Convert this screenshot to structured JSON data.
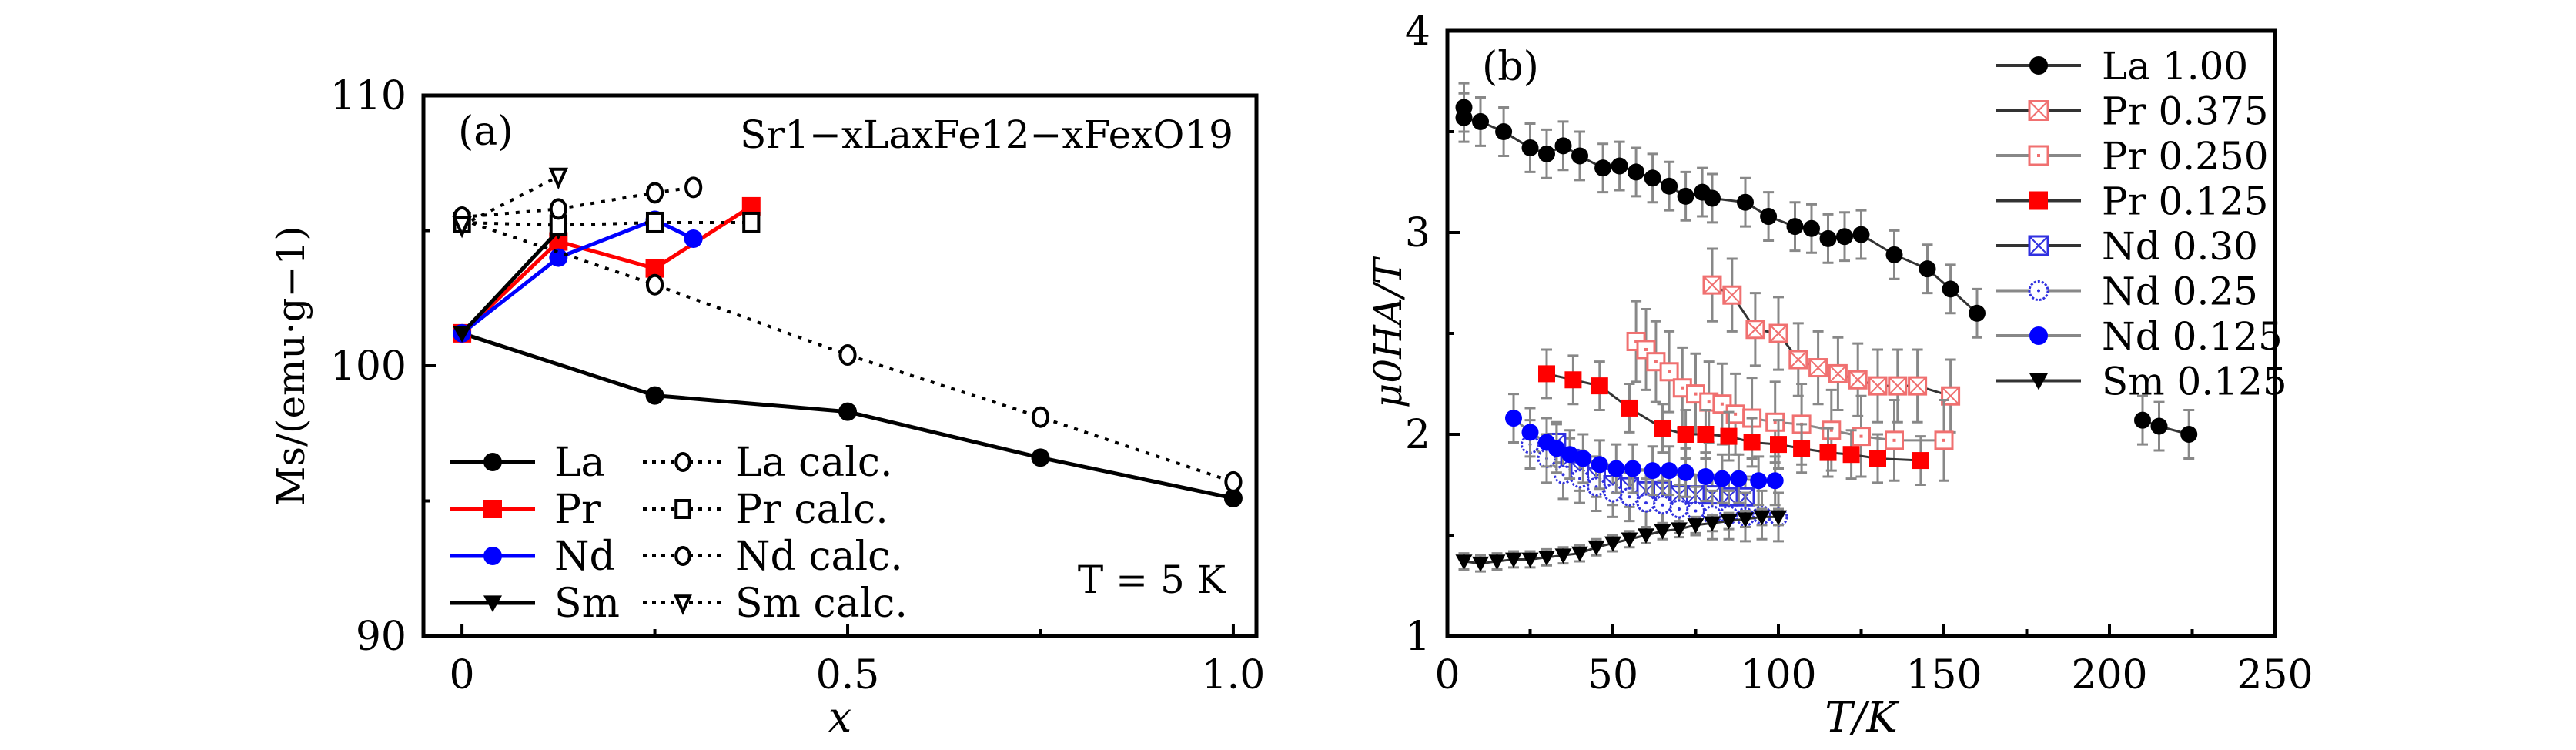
{
  "chart_data": [
    {
      "panel_label": "(a)",
      "type": "line",
      "annotation_formula": "Sr1−xLaxFe12−xFexO19",
      "annotation_temp": "T = 5 K",
      "xlabel": "x",
      "ylabel": "Ms/(emu·g−1)",
      "xlim": [
        -0.05,
        1.03
      ],
      "ylim": [
        90,
        110
      ],
      "xticks": [
        "0",
        "0.5",
        "1.0"
      ],
      "xtick_values": [
        0,
        0.5,
        1.0
      ],
      "yticks": [
        "90",
        "100",
        "110"
      ],
      "ytick_values": [
        90,
        100,
        110
      ],
      "legend_position": "bottom-left",
      "series": [
        {
          "name": "La",
          "color": "#000000",
          "style": "solid",
          "marker": "circle-filled",
          "x": [
            0,
            0.25,
            0.5,
            0.75,
            1.0
          ],
          "y": [
            101.2,
            98.9,
            98.3,
            96.6,
            95.1
          ]
        },
        {
          "name": "Pr",
          "color": "#ff0000",
          "style": "solid",
          "marker": "square-filled",
          "x": [
            0,
            0.125,
            0.25,
            0.375
          ],
          "y": [
            101.2,
            104.6,
            103.6,
            105.9
          ]
        },
        {
          "name": "Nd",
          "color": "#0000ff",
          "style": "solid",
          "marker": "circle-filled",
          "x": [
            0,
            0.125,
            0.25,
            0.3
          ],
          "y": [
            101.2,
            104.0,
            105.4,
            104.7
          ]
        },
        {
          "name": "Sm",
          "color": "#000000",
          "style": "solid",
          "marker": "triangle-down-filled",
          "x": [
            0,
            0.125
          ],
          "y": [
            101.2,
            105.0
          ]
        },
        {
          "name": "La calc.",
          "color": "#000000",
          "style": "dotted",
          "marker": "circle-open",
          "x": [
            0,
            0.25,
            0.5,
            0.75,
            1.0
          ],
          "y": [
            105.4,
            103.0,
            100.4,
            98.1,
            95.7
          ]
        },
        {
          "name": "Pr calc.",
          "color": "#000000",
          "style": "dotted",
          "marker": "square-open",
          "x": [
            0,
            0.125,
            0.25,
            0.375
          ],
          "y": [
            105.3,
            105.2,
            105.3,
            105.3
          ]
        },
        {
          "name": "Nd calc.",
          "color": "#000000",
          "style": "dotted",
          "marker": "circle-open",
          "x": [
            0,
            0.125,
            0.25,
            0.3
          ],
          "y": [
            105.5,
            105.8,
            106.4,
            106.6
          ]
        },
        {
          "name": "Sm calc.",
          "color": "#000000",
          "style": "dotted",
          "marker": "triangle-down-open",
          "x": [
            0,
            0.125
          ],
          "y": [
            105.2,
            107.0
          ]
        }
      ]
    },
    {
      "panel_label": "(b)",
      "type": "line",
      "xlabel": "T/K",
      "ylabel": "μ0HA/T",
      "xlim": [
        0,
        250
      ],
      "ylim": [
        1,
        4
      ],
      "xticks": [
        "0",
        "50",
        "100",
        "150",
        "200",
        "250"
      ],
      "xtick_values": [
        0,
        50,
        100,
        150,
        200,
        250
      ],
      "yticks": [
        "1",
        "2",
        "3",
        "4"
      ],
      "ytick_values": [
        1,
        2,
        3,
        4
      ],
      "legend_position": "top-right",
      "series": [
        {
          "name": "La 1.00",
          "color": "#000000",
          "marker": "circle-filled",
          "line": "#333333",
          "x": [
            5,
            5,
            10,
            17,
            25,
            30,
            35,
            40,
            47,
            52,
            57,
            62,
            67,
            72,
            77,
            80,
            90,
            97,
            105,
            110,
            115,
            120,
            125,
            135,
            145,
            152,
            160,
            210,
            215,
            224
          ],
          "y": [
            3.62,
            3.57,
            3.55,
            3.5,
            3.42,
            3.39,
            3.43,
            3.38,
            3.32,
            3.33,
            3.3,
            3.27,
            3.23,
            3.18,
            3.2,
            3.17,
            3.15,
            3.08,
            3.03,
            3.02,
            2.97,
            2.98,
            2.99,
            2.89,
            2.82,
            2.72,
            2.6,
            2.07,
            2.04,
            2.0
          ],
          "err": 0.12
        },
        {
          "name": "Pr 0.375",
          "color": "#f07070",
          "marker": "square-crossed",
          "line": "#333333",
          "x": [
            80,
            86,
            93,
            100,
            106,
            112,
            118,
            124,
            130,
            136,
            142,
            152
          ],
          "y": [
            2.74,
            2.69,
            2.52,
            2.5,
            2.37,
            2.33,
            2.3,
            2.27,
            2.24,
            2.24,
            2.24,
            2.19
          ],
          "err": 0.18
        },
        {
          "name": "Pr 0.250",
          "color": "#f07070",
          "marker": "square-dotted",
          "line": "#888888",
          "x": [
            57,
            60,
            63,
            67,
            71,
            75,
            79,
            83,
            87,
            92,
            99,
            107,
            116,
            125,
            135,
            150
          ],
          "y": [
            2.46,
            2.42,
            2.36,
            2.31,
            2.23,
            2.2,
            2.16,
            2.15,
            2.1,
            2.08,
            2.06,
            2.05,
            2.02,
            1.99,
            1.97,
            1.97
          ],
          "err": 0.2
        },
        {
          "name": "Pr 0.125",
          "color": "#ff0000",
          "marker": "square-filled",
          "line": "#333333",
          "x": [
            30,
            38,
            46,
            55,
            65,
            72,
            78,
            85,
            92,
            100,
            107,
            115,
            122,
            130,
            143
          ],
          "y": [
            2.3,
            2.27,
            2.24,
            2.13,
            2.03,
            2.0,
            2.0,
            1.99,
            1.96,
            1.95,
            1.93,
            1.91,
            1.9,
            1.88,
            1.87
          ],
          "err": 0.12
        },
        {
          "name": "Nd 0.30",
          "color": "#3030e0",
          "marker": "square-crossed",
          "line": "#333333",
          "x": [
            33,
            37,
            40,
            45,
            50,
            55,
            60,
            65,
            70,
            75,
            80,
            85,
            90
          ],
          "y": [
            1.96,
            1.88,
            1.82,
            1.79,
            1.75,
            1.74,
            1.72,
            1.72,
            1.7,
            1.7,
            1.7,
            1.69,
            1.69
          ],
          "err": 0.1
        },
        {
          "name": "Nd 0.25",
          "color": "#3030e0",
          "marker": "circle-dotted",
          "line": "#888888",
          "x": [
            25,
            30,
            35,
            40,
            45,
            50,
            55,
            60,
            65,
            70,
            75,
            80,
            85,
            90,
            95,
            100
          ],
          "y": [
            1.95,
            1.88,
            1.8,
            1.78,
            1.74,
            1.71,
            1.69,
            1.66,
            1.65,
            1.63,
            1.62,
            1.6,
            1.6,
            1.59,
            1.6,
            1.59
          ],
          "err": 0.12
        },
        {
          "name": "Nd 0.125",
          "color": "#0000ff",
          "marker": "circle-filled",
          "line": "#888888",
          "x": [
            20,
            25,
            30,
            33,
            37,
            41,
            46,
            51,
            56,
            62,
            67,
            72,
            78,
            83,
            88,
            94,
            99
          ],
          "y": [
            2.08,
            2.01,
            1.96,
            1.93,
            1.9,
            1.88,
            1.85,
            1.83,
            1.83,
            1.82,
            1.82,
            1.81,
            1.79,
            1.78,
            1.78,
            1.77,
            1.77
          ],
          "err": 0.12
        },
        {
          "name": "Sm 0.125",
          "color": "#000000",
          "marker": "triangle-down-filled",
          "line": "#333333",
          "x": [
            5,
            10,
            15,
            20,
            25,
            30,
            35,
            40,
            45,
            50,
            55,
            60,
            65,
            70,
            75,
            80,
            85,
            90,
            95,
            100
          ],
          "y": [
            1.37,
            1.36,
            1.37,
            1.38,
            1.38,
            1.39,
            1.4,
            1.41,
            1.44,
            1.46,
            1.48,
            1.5,
            1.52,
            1.53,
            1.55,
            1.56,
            1.57,
            1.58,
            1.59,
            1.59
          ],
          "err": 0.04
        }
      ]
    }
  ]
}
